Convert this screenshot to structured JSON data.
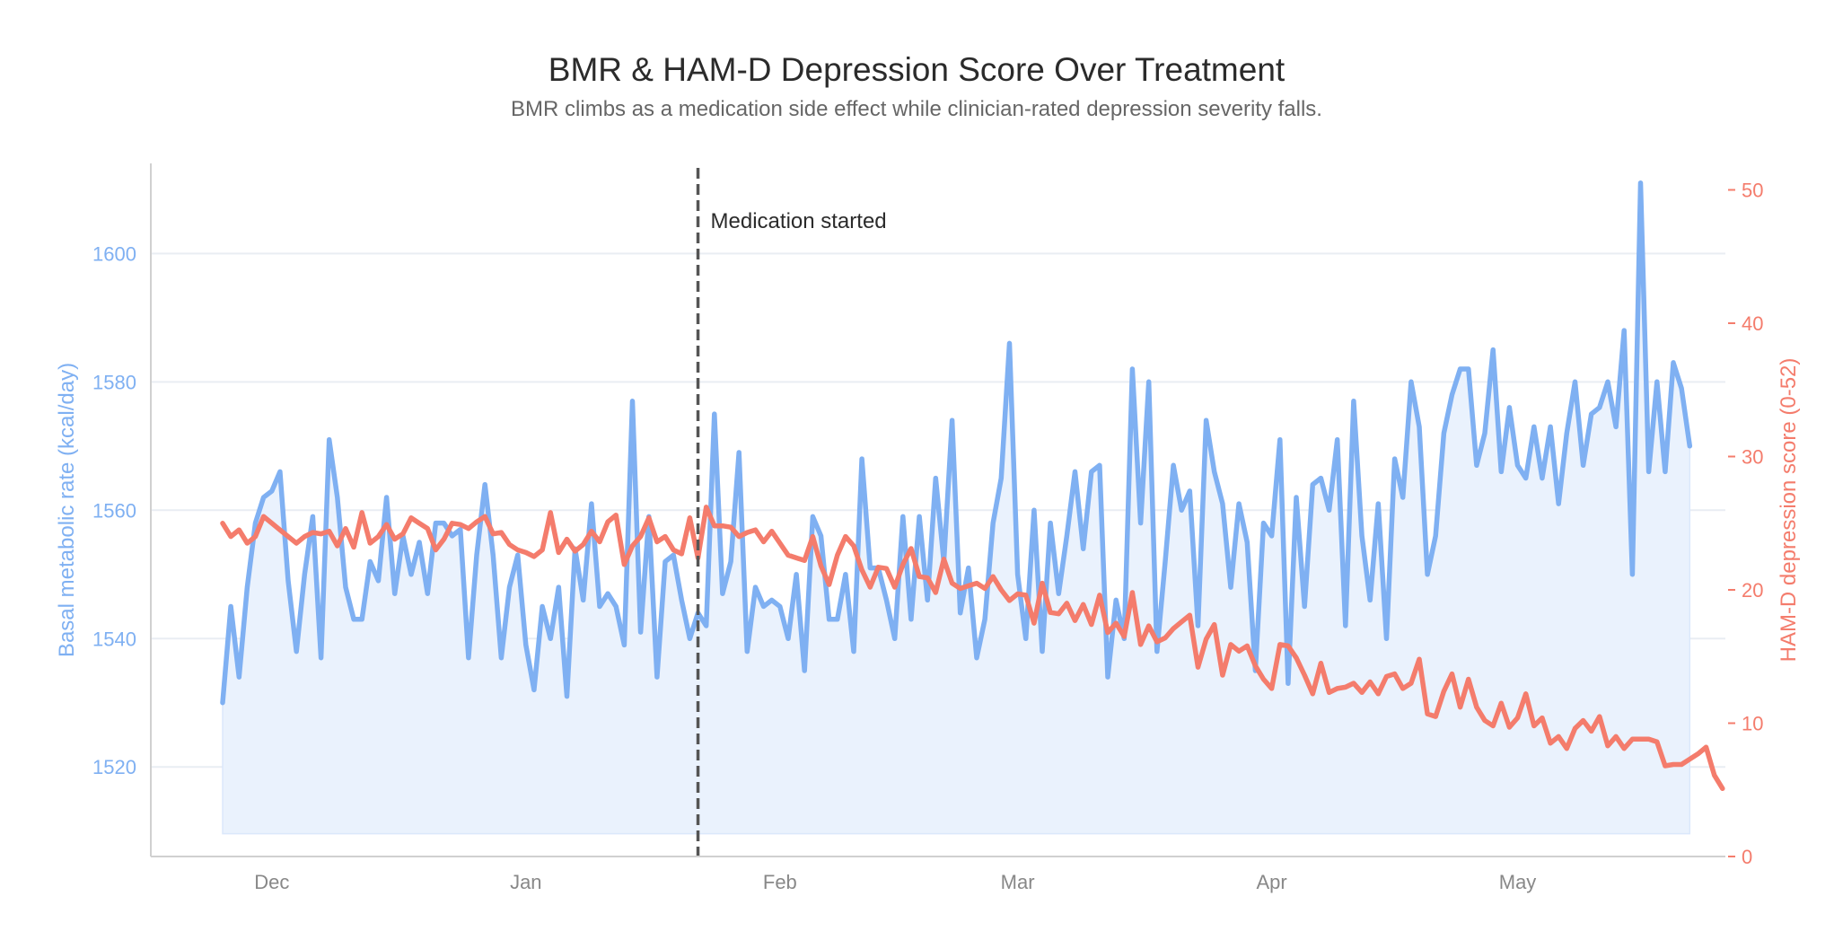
{
  "chart_data": {
    "type": "line",
    "title": "BMR & HAM-D Depression Score Over Treatment",
    "subtitle": "BMR climbs as a medication side effect while clinician-rated depression severity falls.",
    "ylabel_left": "Basal metabolic rate (kcal/day)",
    "ylabel_right": "HAM-D depression score (0-52)",
    "x_start": "2023-11-25",
    "x_ticks": [
      {
        "date": "2023-12-01",
        "label": "Dec"
      },
      {
        "date": "2024-01-01",
        "label": "Jan"
      },
      {
        "date": "2024-02-01",
        "label": "Feb"
      },
      {
        "date": "2024-03-01",
        "label": "Mar"
      },
      {
        "date": "2024-04-01",
        "label": "Apr"
      },
      {
        "date": "2024-05-01",
        "label": "May"
      }
    ],
    "ylim_left": [
      1508,
      1616
    ],
    "yticks_left": [
      1520,
      1540,
      1560,
      1580,
      1600
    ],
    "ylim_right": [
      0,
      52
    ],
    "yticks_right": [
      0,
      10,
      20,
      30,
      40,
      50
    ],
    "grid": true,
    "annotation": {
      "date": "2024-01-22",
      "label": "Medication started"
    },
    "colors": {
      "bmr": "#7fb0f2",
      "hamd": "#f47c6c",
      "fill": "#eaf2fd",
      "grid": "#e9edf3",
      "annotation": "#555555"
    },
    "series": [
      {
        "key": "bmr",
        "axis": "left",
        "values": [
          1530,
          1545,
          1534,
          1548,
          1558,
          1562,
          1563,
          1566,
          1549,
          1538,
          1550,
          1559,
          1537,
          1571,
          1562,
          1548,
          1543,
          1543,
          1552,
          1549,
          1562,
          1547,
          1556,
          1550,
          1555,
          1547,
          1558,
          1558,
          1556,
          1557,
          1537,
          1553,
          1564,
          1553,
          1537,
          1548,
          1553,
          1539,
          1532,
          1545,
          1540,
          1548,
          1531,
          1554,
          1546,
          1561,
          1545,
          1547,
          1545,
          1539,
          1577,
          1541,
          1559,
          1534,
          1552,
          1553,
          1546,
          1540,
          1544,
          1542,
          1575,
          1547,
          1552,
          1569,
          1538,
          1548,
          1545,
          1546,
          1545,
          1540,
          1550,
          1535,
          1559,
          1556,
          1543,
          1543,
          1550,
          1538,
          1568,
          1551,
          1551,
          1546,
          1540,
          1559,
          1543,
          1559,
          1546,
          1565,
          1552,
          1574,
          1544,
          1551,
          1537,
          1543,
          1558,
          1565,
          1586,
          1550,
          1540,
          1560,
          1538,
          1558,
          1547,
          1556,
          1566,
          1554,
          1566,
          1567,
          1534,
          1546,
          1540,
          1582,
          1558,
          1580,
          1538,
          1552,
          1567,
          1560,
          1563,
          1542,
          1574,
          1566,
          1561,
          1548,
          1561,
          1555,
          1535,
          1558,
          1556,
          1571,
          1533,
          1562,
          1545,
          1564,
          1565,
          1560,
          1571,
          1542,
          1577,
          1556,
          1546,
          1561,
          1540,
          1568,
          1562,
          1580,
          1573,
          1550,
          1556,
          1572,
          1578,
          1582,
          1582,
          1567,
          1572,
          1585,
          1566,
          1576,
          1567,
          1565,
          1573,
          1565,
          1573,
          1561,
          1572,
          1580,
          1567,
          1575,
          1576,
          1580,
          1573,
          1588,
          1550,
          1611,
          1566,
          1580,
          1566,
          1583,
          1579,
          1570
        ]
      },
      {
        "key": "hamd",
        "axis": "right",
        "values": [
          25,
          24,
          24.5,
          23.5,
          24,
          25.5,
          25,
          24.5,
          24,
          23.5,
          24,
          24.3,
          24.2,
          24.4,
          23.3,
          24.6,
          23.2,
          25.8,
          23.5,
          24,
          24.9,
          23.8,
          24.2,
          25.4,
          25,
          24.6,
          23,
          23.8,
          25,
          24.9,
          24.6,
          25.1,
          25.5,
          24.2,
          24.3,
          23.4,
          23,
          22.8,
          22.5,
          23,
          25.8,
          22.8,
          23.8,
          22.9,
          23.4,
          24.4,
          23.6,
          25.1,
          25.6,
          21.9,
          23.3,
          24,
          25.4,
          23.6,
          24,
          23,
          22.7,
          25.4,
          22.4,
          26.2,
          24.8,
          24.8,
          24.7,
          24,
          24.3,
          24.5,
          23.6,
          24.4,
          23.5,
          22.6,
          22.4,
          22.2,
          24,
          21.8,
          20.4,
          22.6,
          24,
          23.3,
          21.5,
          20.2,
          21.7,
          21.6,
          20.2,
          21.9,
          23.1,
          21,
          20.9,
          19.8,
          22.3,
          20.5,
          20.1,
          20.3,
          20.5,
          20.1,
          21,
          20,
          19.2,
          19.7,
          19.6,
          17.5,
          20.5,
          18.3,
          18.2,
          19,
          17.7,
          18.9,
          17.4,
          19.6,
          16.8,
          17.5,
          16.5,
          19.8,
          15.9,
          17.3,
          16.1,
          16.4,
          17.1,
          17.6,
          18.1,
          14.2,
          16.3,
          17.4,
          13.6,
          15.9,
          15.4,
          15.8,
          14.3,
          13.3,
          12.6,
          15.9,
          15.8,
          14.9,
          13.6,
          12.2,
          14.5,
          12.3,
          12.6,
          12.7,
          13,
          12.3,
          13.1,
          12.2,
          13.5,
          13.7,
          12.6,
          13,
          14.8,
          10.7,
          10.5,
          12.4,
          13.7,
          11.2,
          13.3,
          11.2,
          10.2,
          9.8,
          11.5,
          9.7,
          10.4,
          12.2,
          9.8,
          10.4,
          8.5,
          9,
          8.1,
          9.6,
          10.2,
          9.4,
          10.5,
          8.3,
          9,
          8.1,
          8.8,
          8.8,
          8.8,
          8.6,
          6.8,
          6.9,
          6.9,
          7.3,
          7.7,
          8.2,
          6.1,
          5.1
        ]
      }
    ]
  }
}
